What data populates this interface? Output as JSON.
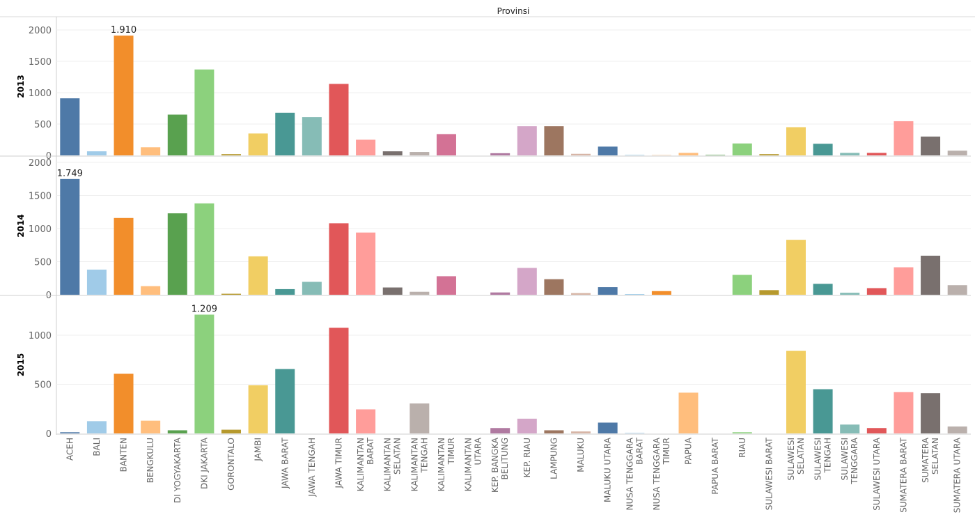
{
  "chart_data": {
    "type": "bar",
    "title": "Provinsi",
    "categories": [
      "ACEH",
      "BALI",
      "BANTEN",
      "BENGKULU",
      "DI YOGYAKARTA",
      "DKI JAKARTA",
      "GORONTALO",
      "JAMBI",
      "JAWA BARAT",
      "JAWA TENGAH",
      "JAWA TIMUR",
      "KALIMANTAN BARAT",
      "KALIMANTAN SELATAN",
      "KALIMANTAN TENGAH",
      "KALIMANTAN TIMUR",
      "KALIMANTAN UTARA",
      "KEP. BANGKA BELITUNG",
      "KEP. RIAU",
      "LAMPUNG",
      "MALUKU",
      "MALUKU UTARA",
      "NUSA TENGGARA BARAT",
      "NUSA TENGGARA TIMUR",
      "PAPUA",
      "PAPUA BARAT",
      "RIAU",
      "SULAWESI BARAT",
      "SULAWESI SELATAN",
      "SULAWESI TENGAH",
      "SULAWESI TENGGARA",
      "SULAWESI UTARA",
      "SUMATERA BARAT",
      "SUMATERA SELATAN",
      "SUMATERA UTARA"
    ],
    "category_lines": [
      [
        "ACEH"
      ],
      [
        "BALI"
      ],
      [
        "BANTEN"
      ],
      [
        "BENGKULU"
      ],
      [
        "DI YOGYAKARTA"
      ],
      [
        "DKI JAKARTA"
      ],
      [
        "GORONTALO"
      ],
      [
        "JAMBI"
      ],
      [
        "JAWA BARAT"
      ],
      [
        "JAWA TENGAH"
      ],
      [
        "JAWA TIMUR"
      ],
      [
        "KALIMANTAN",
        "BARAT"
      ],
      [
        "KALIMANTAN",
        "SELATAN"
      ],
      [
        "KALIMANTAN",
        "TENGAH"
      ],
      [
        "KALIMANTAN",
        "TIMUR"
      ],
      [
        "KALIMANTAN",
        "UTARA"
      ],
      [
        "KEP. BANGKA",
        "BELITUNG"
      ],
      [
        "KEP. RIAU"
      ],
      [
        "LAMPUNG"
      ],
      [
        "MALUKU"
      ],
      [
        "MALUKU UTARA"
      ],
      [
        "NUSA TENGGARA",
        "BARAT"
      ],
      [
        "NUSA TENGGARA",
        "TIMUR"
      ],
      [
        "PAPUA"
      ],
      [
        "PAPUA BARAT"
      ],
      [
        "RIAU"
      ],
      [
        "SULAWESI BARAT"
      ],
      [
        "SULAWESI",
        "SELATAN"
      ],
      [
        "SULAWESI",
        "TENGAH"
      ],
      [
        "SULAWESI",
        "TENGGARA"
      ],
      [
        "SULAWESI UTARA"
      ],
      [
        "SUMATERA BARAT"
      ],
      [
        "SUMATERA",
        "SELATAN"
      ],
      [
        "SUMATERA UTARA"
      ]
    ],
    "colors": [
      "#4e79a7",
      "#a0cbe8",
      "#f28e2b",
      "#ffbe7d",
      "#59a14f",
      "#8cd17d",
      "#b6992d",
      "#f1ce63",
      "#499894",
      "#86bcb6",
      "#e15759",
      "#ff9d9a",
      "#79706e",
      "#bab0ac",
      "#d37295",
      "#fabfd2",
      "#b07aa1",
      "#d4a6c8",
      "#9d7660",
      "#d7b5a6",
      "#4e79a7",
      "#a0cbe8",
      "#f28e2b",
      "#ffbe7d",
      "#59a14f",
      "#8cd17d",
      "#b6992d",
      "#f1ce63",
      "#499894",
      "#86bcb6",
      "#e15759",
      "#ff9d9a",
      "#79706e",
      "#bab0ac"
    ],
    "series": [
      {
        "name": "2013",
        "values": [
          910,
          65,
          1910,
          130,
          650,
          1370,
          20,
          350,
          680,
          610,
          1140,
          250,
          65,
          55,
          340,
          0,
          35,
          465,
          465,
          25,
          140,
          8,
          3,
          40,
          8,
          190,
          20,
          450,
          185,
          40,
          40,
          545,
          300,
          75
        ],
        "ylim": [
          0,
          2000
        ],
        "ticks": [
          0,
          500,
          1000,
          1500,
          2000
        ],
        "tick_labels": [
          "0",
          "500",
          "1000",
          "1500",
          "2000"
        ],
        "data_label": {
          "index": 2,
          "text": "1.910"
        }
      },
      {
        "name": "2014",
        "values": [
          1749,
          380,
          1160,
          130,
          1230,
          1380,
          15,
          580,
          85,
          195,
          1080,
          940,
          110,
          45,
          280,
          0,
          35,
          405,
          235,
          25,
          115,
          10,
          55,
          0,
          0,
          300,
          70,
          830,
          165,
          30,
          100,
          415,
          590,
          145
        ],
        "ylim": [
          0,
          2000
        ],
        "ticks": [
          0,
          500,
          1000,
          1500,
          2000
        ],
        "tick_labels": [
          "0",
          "500",
          "1000",
          "1500",
          "2000"
        ],
        "data_label": {
          "index": 0,
          "text": "1.749"
        }
      },
      {
        "name": "2015",
        "values": [
          12,
          125,
          607,
          130,
          32,
          1209,
          38,
          490,
          655,
          0,
          1075,
          245,
          0,
          305,
          0,
          0,
          55,
          150,
          32,
          20,
          110,
          5,
          0,
          415,
          0,
          12,
          0,
          840,
          450,
          90,
          55,
          420,
          410,
          70
        ],
        "ylim": [
          0,
          1300
        ],
        "ticks": [
          0,
          500,
          1000
        ],
        "tick_labels": [
          "0",
          "500",
          "1000"
        ],
        "data_label": {
          "index": 5,
          "text": "1.209"
        }
      }
    ],
    "grid": true,
    "legend": "none"
  }
}
